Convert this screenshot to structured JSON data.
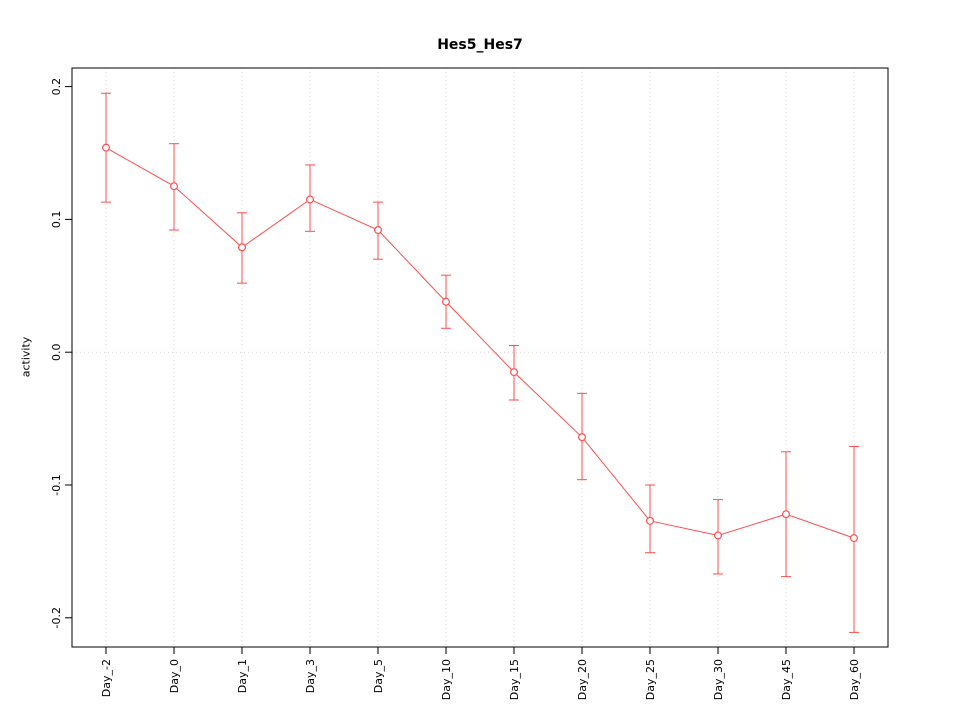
{
  "chart_data": {
    "type": "line",
    "title": "Hes5_Hes7",
    "xlabel": "",
    "ylabel": "activity",
    "categories": [
      "Day_-2",
      "Day_0",
      "Day_1",
      "Day_3",
      "Day_5",
      "Day_10",
      "Day_15",
      "Day_20",
      "Day_25",
      "Day_30",
      "Day_45",
      "Day_60"
    ],
    "series": [
      {
        "name": "activity",
        "values": [
          0.154,
          0.125,
          0.079,
          0.115,
          0.092,
          0.038,
          -0.015,
          -0.064,
          -0.127,
          -0.138,
          -0.122,
          -0.14
        ],
        "error_low": [
          0.113,
          0.092,
          0.052,
          0.091,
          0.07,
          0.018,
          -0.036,
          -0.096,
          -0.151,
          -0.167,
          -0.169,
          -0.211
        ],
        "error_high": [
          0.195,
          0.157,
          0.105,
          0.141,
          0.113,
          0.058,
          0.005,
          -0.031,
          -0.1,
          -0.111,
          -0.075,
          -0.071
        ]
      }
    ],
    "yticks": [
      {
        "value": -0.2,
        "label": "-0.2"
      },
      {
        "value": -0.1,
        "label": "-0.1"
      },
      {
        "value": 0.0,
        "label": "0.0"
      },
      {
        "value": 0.1,
        "label": "0.1"
      },
      {
        "value": 0.2,
        "label": "0.2"
      }
    ],
    "ylim": [
      -0.222,
      0.214
    ],
    "grid": true,
    "legend": "none",
    "colors": {
      "series": "#ff4d4d",
      "grid": "#d4d4d4",
      "axis": "#000000",
      "marker_fill": "#ffffff"
    }
  }
}
